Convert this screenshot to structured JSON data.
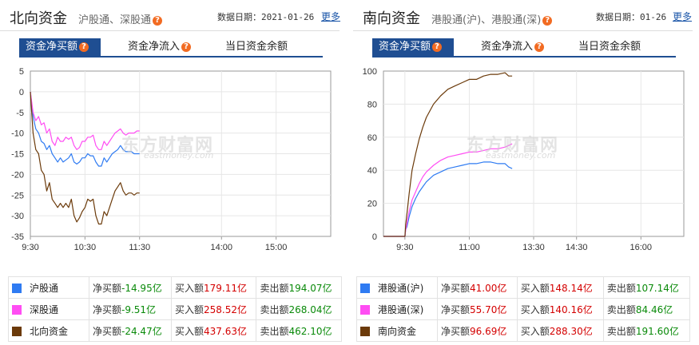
{
  "north": {
    "title": "北向资金",
    "subtitle": "沪股通、深股通",
    "date_label": "数据日期：2021-01-26",
    "more": "更多",
    "tabs": [
      "资金净买额",
      "资金净流入",
      "当日资金余额"
    ],
    "help_glyph": "?",
    "colors": {
      "sh": "#2f7bf2",
      "sz": "#ff4df3",
      "total": "#6b3a0a"
    },
    "rows": [
      {
        "name": "沪股通",
        "net_label": "净买额",
        "net": "-14.95亿",
        "buy_label": "买入额",
        "buy": "179.11亿",
        "sell_label": "卖出额",
        "sell": "194.07亿"
      },
      {
        "name": "深股通",
        "net_label": "净买额",
        "net": "-9.51亿",
        "buy_label": "买入额",
        "buy": "258.52亿",
        "sell_label": "卖出额",
        "sell": "268.04亿"
      },
      {
        "name": "北向资金",
        "net_label": "净买额",
        "net": "-24.47亿",
        "buy_label": "买入额",
        "buy": "437.63亿",
        "sell_label": "卖出额",
        "sell": "462.10亿"
      }
    ]
  },
  "south": {
    "title": "南向资金",
    "subtitle": "港股通(沪)、港股通(深)",
    "date_label": "数据日期：01-26",
    "more": "更多",
    "tabs": [
      "资金净买额",
      "资金净流入",
      "当日资金余额"
    ],
    "help_glyph": "?",
    "colors": {
      "sh": "#2f7bf2",
      "sz": "#ff4df3",
      "total": "#6b3a0a"
    },
    "rows": [
      {
        "name": "港股通(沪)",
        "net_label": "净买额",
        "net": "41.00亿",
        "buy_label": "买入额",
        "buy": "148.14亿",
        "sell_label": "卖出额",
        "sell": "107.14亿"
      },
      {
        "name": "港股通(深)",
        "net_label": "净买额",
        "net": "55.70亿",
        "buy_label": "买入额",
        "buy": "140.16亿",
        "sell_label": "卖出额",
        "sell": "84.46亿"
      },
      {
        "name": "南向资金",
        "net_label": "净买额",
        "net": "96.69亿",
        "buy_label": "买入额",
        "buy": "288.30亿",
        "sell_label": "卖出额",
        "sell": "191.60亿"
      }
    ]
  },
  "watermark": {
    "cn": "东方财富网",
    "en": "eastmoney.com"
  },
  "chart_data": [
    {
      "type": "line",
      "x_unit": "minutes",
      "xlim": [
        0,
        330
      ],
      "ylim": [
        -35,
        5
      ],
      "yticks": [
        5,
        0,
        -5,
        -10,
        -15,
        -20,
        -25,
        -30,
        -35
      ],
      "xticks": [
        {
          "x": 0,
          "label": "9:30"
        },
        {
          "x": 60,
          "label": "10:30"
        },
        {
          "x": 120,
          "label": "11:30"
        },
        {
          "x": 210,
          "label": "14:00"
        },
        {
          "x": 270,
          "label": "15:00"
        }
      ],
      "grid": true,
      "series": [
        {
          "name": "沪股通",
          "color": "#2f7bf2",
          "x": [
            0,
            3,
            6,
            9,
            12,
            15,
            18,
            21,
            24,
            27,
            30,
            33,
            36,
            39,
            42,
            45,
            48,
            51,
            54,
            57,
            60,
            63,
            66,
            69,
            72,
            75,
            78,
            81,
            84,
            87,
            90,
            93,
            96,
            99,
            102,
            105,
            108,
            111,
            114,
            117,
            120
          ],
          "y": [
            0,
            -6,
            -9,
            -10,
            -12,
            -12.5,
            -14,
            -13,
            -15,
            -16,
            -17,
            -16,
            -17,
            -16.5,
            -16,
            -15,
            -17,
            -17.5,
            -17,
            -16,
            -16,
            -15,
            -15.5,
            -15.5,
            -17,
            -18,
            -18,
            -16,
            -17,
            -16,
            -15,
            -14.5,
            -14,
            -13,
            -14,
            -14.5,
            -14.5,
            -14.5,
            -15,
            -15,
            -15
          ]
        },
        {
          "name": "深股通",
          "color": "#ff4df3",
          "x": [
            0,
            3,
            6,
            9,
            12,
            15,
            18,
            21,
            24,
            27,
            30,
            33,
            36,
            39,
            42,
            45,
            48,
            51,
            54,
            57,
            60,
            63,
            66,
            69,
            72,
            75,
            78,
            81,
            84,
            87,
            90,
            93,
            96,
            99,
            102,
            105,
            108,
            111,
            114,
            117,
            120
          ],
          "y": [
            0,
            -5,
            -7,
            -6,
            -8,
            -7.5,
            -10,
            -9,
            -12,
            -13,
            -11,
            -12,
            -12,
            -11,
            -11.5,
            -11,
            -13,
            -14,
            -13.5,
            -12,
            -12,
            -11,
            -11,
            -10.5,
            -13,
            -14,
            -14,
            -12,
            -13,
            -12,
            -11,
            -10,
            -9.5,
            -9,
            -10,
            -10.5,
            -10,
            -10,
            -10,
            -9.5,
            -9.5
          ]
        },
        {
          "name": "北向资金",
          "color": "#6b3a0a",
          "x": [
            0,
            3,
            6,
            9,
            12,
            15,
            18,
            21,
            24,
            27,
            30,
            33,
            36,
            39,
            42,
            45,
            48,
            51,
            54,
            57,
            60,
            63,
            66,
            69,
            72,
            75,
            78,
            81,
            84,
            87,
            90,
            93,
            96,
            99,
            102,
            105,
            108,
            111,
            114,
            117,
            120
          ],
          "y": [
            0,
            -10,
            -14,
            -15,
            -19,
            -20,
            -24,
            -22,
            -26,
            -27,
            -28,
            -27,
            -28,
            -27,
            -28,
            -26,
            -30,
            -31.5,
            -30.5,
            -29,
            -28,
            -26,
            -26.5,
            -26,
            -30,
            -32,
            -32,
            -29,
            -30,
            -28,
            -26,
            -24,
            -23,
            -22,
            -24,
            -25,
            -24.5,
            -24.5,
            -25,
            -24.5,
            -24.5
          ]
        }
      ]
    },
    {
      "type": "line",
      "x_unit": "minutes",
      "xlim": [
        0,
        420
      ],
      "ylim": [
        0,
        100
      ],
      "yticks": [
        100,
        80,
        60,
        40,
        20,
        0
      ],
      "xticks": [
        {
          "x": 30,
          "label": "9:30"
        },
        {
          "x": 120,
          "label": "11:00"
        },
        {
          "x": 210,
          "label": "13:30"
        },
        {
          "x": 270,
          "label": "14:30"
        },
        {
          "x": 360,
          "label": "16:00"
        }
      ],
      "grid": true,
      "series": [
        {
          "name": "港股通(沪)",
          "color": "#2f7bf2",
          "x": [
            0,
            15,
            30,
            31,
            33,
            36,
            40,
            45,
            50,
            55,
            60,
            70,
            80,
            90,
            100,
            110,
            120,
            130,
            140,
            150,
            160,
            170,
            175,
            180
          ],
          "y": [
            0,
            0,
            0,
            4,
            6,
            12,
            18,
            23,
            27,
            30,
            33,
            37,
            39,
            41,
            42,
            43,
            44,
            44,
            45,
            45,
            44,
            44,
            42,
            41
          ]
        },
        {
          "name": "港股通(深)",
          "color": "#ff4df3",
          "x": [
            0,
            15,
            30,
            31,
            33,
            36,
            40,
            45,
            50,
            55,
            60,
            70,
            80,
            90,
            100,
            110,
            120,
            130,
            140,
            150,
            160,
            170,
            175,
            180
          ],
          "y": [
            0,
            0,
            0,
            4,
            8,
            15,
            22,
            27,
            32,
            36,
            39,
            43,
            46,
            48,
            49,
            50,
            51,
            51,
            52,
            53,
            53,
            54,
            55,
            56
          ]
        },
        {
          "name": "南向资金",
          "color": "#6b3a0a",
          "x": [
            0,
            15,
            30,
            31,
            33,
            36,
            40,
            45,
            50,
            55,
            60,
            70,
            80,
            90,
            100,
            110,
            120,
            130,
            140,
            150,
            160,
            170,
            175,
            180
          ],
          "y": [
            0,
            0,
            0,
            7,
            14,
            26,
            40,
            50,
            59,
            66,
            72,
            80,
            85,
            89,
            91,
            93,
            95,
            95,
            97,
            98,
            98,
            99,
            97,
            97
          ]
        }
      ]
    }
  ]
}
